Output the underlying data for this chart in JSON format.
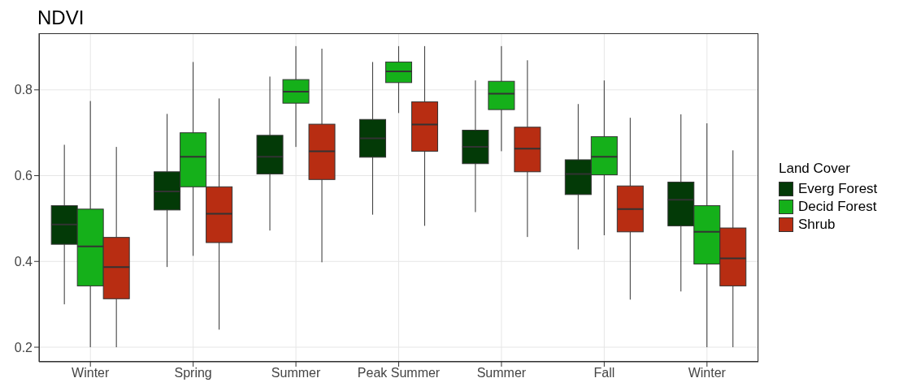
{
  "chart_data": {
    "type": "box",
    "title": "NDVI",
    "legend_title": "Land Cover",
    "legend": "right",
    "grid": true,
    "categories": [
      "Winter",
      "Spring",
      "Summer",
      "Peak Summer",
      "Summer",
      "Fall",
      "Winter"
    ],
    "ylim": [
      0.166,
      0.932
    ],
    "yticks": [
      0.2,
      0.4,
      0.6,
      0.8
    ],
    "series": [
      {
        "name": "Everg Forest",
        "color": "#033a07",
        "boxes": [
          {
            "low": 0.3,
            "q1": 0.44,
            "median": 0.486,
            "q3": 0.53,
            "high": 0.672
          },
          {
            "low": 0.387,
            "q1": 0.52,
            "median": 0.563,
            "q3": 0.609,
            "high": 0.744
          },
          {
            "low": 0.472,
            "q1": 0.604,
            "median": 0.644,
            "q3": 0.694,
            "high": 0.831
          },
          {
            "low": 0.509,
            "q1": 0.643,
            "median": 0.687,
            "q3": 0.731,
            "high": 0.865
          },
          {
            "low": 0.515,
            "q1": 0.628,
            "median": 0.667,
            "q3": 0.706,
            "high": 0.822
          },
          {
            "low": 0.428,
            "q1": 0.556,
            "median": 0.604,
            "q3": 0.637,
            "high": 0.767
          },
          {
            "low": 0.33,
            "q1": 0.483,
            "median": 0.544,
            "q3": 0.585,
            "high": 0.743
          }
        ]
      },
      {
        "name": "Decid Forest",
        "color": "#15b01a",
        "boxes": [
          {
            "low": 0.2,
            "q1": 0.343,
            "median": 0.435,
            "q3": 0.522,
            "high": 0.774
          },
          {
            "low": 0.413,
            "q1": 0.574,
            "median": 0.644,
            "q3": 0.7,
            "high": 0.865
          },
          {
            "low": 0.667,
            "q1": 0.769,
            "median": 0.796,
            "q3": 0.824,
            "high": 0.902
          },
          {
            "low": 0.746,
            "q1": 0.817,
            "median": 0.843,
            "q3": 0.865,
            "high": 0.902
          },
          {
            "low": 0.657,
            "q1": 0.754,
            "median": 0.791,
            "q3": 0.82,
            "high": 0.902
          },
          {
            "low": 0.461,
            "q1": 0.602,
            "median": 0.644,
            "q3": 0.691,
            "high": 0.822
          },
          {
            "low": 0.2,
            "q1": 0.394,
            "median": 0.469,
            "q3": 0.53,
            "high": 0.722
          }
        ]
      },
      {
        "name": "Shrub",
        "color": "#b82d12",
        "boxes": [
          {
            "low": 0.2,
            "q1": 0.313,
            "median": 0.387,
            "q3": 0.456,
            "high": 0.667
          },
          {
            "low": 0.241,
            "q1": 0.444,
            "median": 0.511,
            "q3": 0.574,
            "high": 0.78
          },
          {
            "low": 0.398,
            "q1": 0.591,
            "median": 0.657,
            "q3": 0.72,
            "high": 0.896
          },
          {
            "low": 0.483,
            "q1": 0.657,
            "median": 0.719,
            "q3": 0.772,
            "high": 0.902
          },
          {
            "low": 0.457,
            "q1": 0.609,
            "median": 0.663,
            "q3": 0.713,
            "high": 0.869
          },
          {
            "low": 0.311,
            "q1": 0.469,
            "median": 0.522,
            "q3": 0.576,
            "high": 0.735
          },
          {
            "low": 0.2,
            "q1": 0.343,
            "median": 0.407,
            "q3": 0.478,
            "high": 0.659
          }
        ]
      }
    ]
  }
}
